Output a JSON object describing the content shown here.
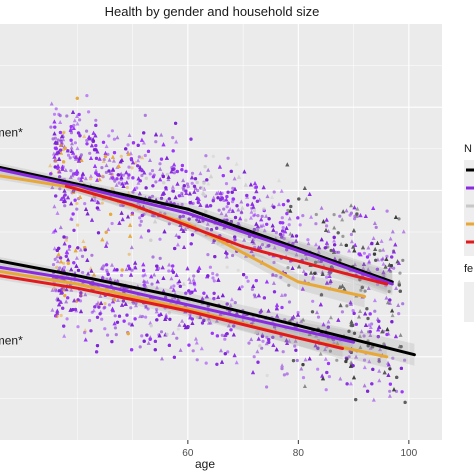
{
  "chart_data": {
    "type": "scatter",
    "title": "Health by gender and household size",
    "xlabel": "age",
    "ylabel": "",
    "xlim": [
      26,
      106
    ],
    "ylim": [
      0,
      10
    ],
    "x_ticks": [
      60,
      80,
      100
    ],
    "grid": true,
    "panel_background": "#ebebeb",
    "grid_color": "#ffffff",
    "annotations": [
      {
        "text": "men*",
        "x": 26.5,
        "y": 7.3
      },
      {
        "text": "men*",
        "x": 26.5,
        "y": 2.3
      }
    ],
    "legend": {
      "placement": "right",
      "partially_visible": true,
      "titles": [
        "N",
        "fe"
      ],
      "keys": [
        {
          "color": "#000000"
        },
        {
          "color": "#8a2be2"
        },
        {
          "color": "#c8c8c8"
        },
        {
          "color": "#e8a838"
        },
        {
          "color": "#e31a1c"
        }
      ]
    },
    "point_colors": [
      "#8a2be2",
      "#9b30ff",
      "#7a1fd1",
      "#5a5a5a",
      "#3a3a3a",
      "#e8a838",
      "#d0d0d0"
    ],
    "point_cloud": {
      "x_range": [
        36,
        99
      ],
      "y_center_upper": 5.8,
      "y_center_lower": 3.2,
      "y_spread": 1.8
    },
    "series": [
      {
        "group": "upper",
        "color": "#000000",
        "x": [
          26,
          40,
          60,
          80,
          97
        ],
        "y": [
          6.55,
          6.15,
          5.55,
          4.6,
          3.8
        ]
      },
      {
        "group": "upper",
        "color": "#8a2be2",
        "x": [
          26,
          40,
          60,
          80,
          97
        ],
        "y": [
          6.5,
          6.1,
          5.45,
          4.55,
          3.75
        ]
      },
      {
        "group": "upper",
        "color": "#e8a838",
        "x": [
          26,
          40,
          60,
          80,
          92
        ],
        "y": [
          6.35,
          6.05,
          5.2,
          3.8,
          3.45
        ]
      },
      {
        "group": "upper",
        "color": "#e31a1c",
        "x": [
          38,
          50,
          70,
          90,
          96
        ],
        "y": [
          6.1,
          5.65,
          4.65,
          3.95,
          3.75
        ]
      },
      {
        "group": "lower",
        "color": "#000000",
        "x": [
          26,
          40,
          60,
          80,
          101
        ],
        "y": [
          4.3,
          3.95,
          3.4,
          2.75,
          2.05
        ]
      },
      {
        "group": "lower",
        "color": "#8a2be2",
        "x": [
          26,
          40,
          60,
          80,
          90
        ],
        "y": [
          4.15,
          3.85,
          3.25,
          2.65,
          2.35
        ]
      },
      {
        "group": "lower",
        "color": "#e8a838",
        "x": [
          26,
          40,
          60,
          80,
          96
        ],
        "y": [
          4.05,
          3.75,
          3.15,
          2.45,
          2.0
        ]
      },
      {
        "group": "lower",
        "color": "#e31a1c",
        "x": [
          26,
          40,
          60,
          80,
          88
        ],
        "y": [
          3.95,
          3.65,
          3.1,
          2.45,
          2.2
        ]
      }
    ]
  }
}
